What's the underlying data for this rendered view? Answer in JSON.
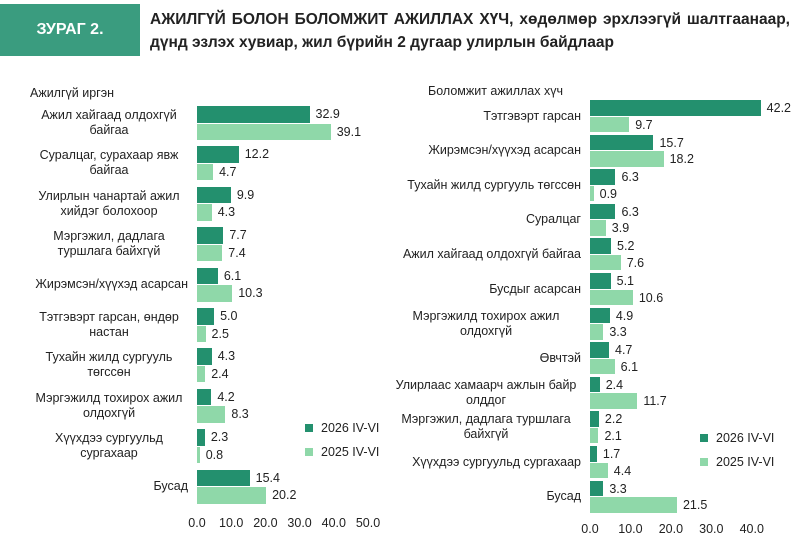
{
  "header": {
    "label": "ЗУРАГ 2.",
    "title": "АЖИЛГҮЙ БОЛОН БОЛОМЖИТ АЖИЛЛАХ ХҮЧ, хөдөлмөр эрхлээгүй шалтгаанаар, дүнд эзлэх хувиар, жил бүрийн 2 дугаар улирлын байдлаар"
  },
  "chart_data": [
    {
      "type": "hbar",
      "title": "Ажилгүй иргэн",
      "categories": [
        "Ажил хайгаад олдохгүй байгаа",
        "Суралцаг, сурахаар явж байгаа",
        "Улирлын чанартай ажил хийдэг болохоор",
        "Мэргэжил, дадлага туршлага байхгүй",
        "Жирэмсэн/хүүхэд асарсан",
        "Тэтгэвэрт гарсан, өндөр настан",
        "Тухайн жилд сургууль төгссөн",
        "Мэргэжилд тохирох ажил олдохгүй",
        "Хүүхдээ сургуульд сургахаар",
        "Бусад"
      ],
      "series": [
        {
          "name": "2026 IV-VI",
          "color": "#23906e",
          "values": [
            32.9,
            12.2,
            9.9,
            7.7,
            6.1,
            5.0,
            4.3,
            4.2,
            2.3,
            15.4
          ],
          "value_labels": [
            "32.9",
            "12.2",
            "9.9",
            "7.7",
            "6.1",
            "5.0",
            "4.3",
            "4.2",
            "2.3",
            "15.4"
          ]
        },
        {
          "name": "2025 IV-VI",
          "color": "#8fd8a9",
          "values": [
            39.1,
            4.7,
            4.3,
            7.4,
            10.3,
            2.5,
            2.4,
            8.3,
            0.8,
            20.2
          ],
          "value_labels": [
            "39.1",
            "4.7",
            "4.3",
            "7.4",
            "10.3",
            "2.5",
            "2.4",
            "8.3",
            "0.8",
            "20.2"
          ]
        }
      ],
      "xlim": [
        0,
        50
      ],
      "xticks": [
        {
          "value": 0,
          "label": "0.0"
        },
        {
          "value": 10,
          "label": "10.0"
        },
        {
          "value": 20,
          "label": "20.0"
        },
        {
          "value": 30,
          "label": "30.0"
        },
        {
          "value": 40,
          "label": "40.0"
        },
        {
          "value": 50,
          "label": "50.0"
        }
      ]
    },
    {
      "type": "hbar",
      "title": "Боломжит ажиллах хүч",
      "categories": [
        "Тэтгэвэрт гарсан",
        "Жирэмсэн/хүүхэд асарсан",
        "Тухайн жилд сургууль төгссөн",
        "Суралцаг",
        "Ажил хайгаад олдохгүй байгаа",
        "Бусдыг асарсан",
        "Мэргэжилд тохирох ажил олдохгүй",
        "Өвчтэй",
        "Улирлаас хамаарч ажлын байр олддог",
        "Мэргэжил, дадлага туршлага байхгүй",
        "Хүүхдээ сургуульд сургахаар",
        "Бусад"
      ],
      "series": [
        {
          "name": "2026 IV-VI",
          "color": "#23906e",
          "values": [
            42.2,
            15.7,
            6.3,
            6.3,
            5.2,
            5.1,
            4.9,
            4.7,
            2.4,
            2.2,
            1.7,
            3.3
          ],
          "value_labels": [
            "42.2",
            "15.7",
            "6.3",
            "6.3",
            "5.2",
            "5.1",
            "4.9",
            "4.7",
            "2.4",
            "2.2",
            "1.7",
            "3.3"
          ]
        },
        {
          "name": "2025 IV-VI",
          "color": "#8fd8a9",
          "values": [
            9.7,
            18.2,
            0.9,
            3.9,
            7.6,
            10.6,
            3.3,
            6.1,
            11.7,
            2.1,
            4.4,
            21.5
          ],
          "value_labels": [
            "9.7",
            "18.2",
            "0.9",
            "3.9",
            "7.6",
            "10.6",
            "3.3",
            "6.1",
            "11.7",
            "2.1",
            "4.4",
            "21.5"
          ]
        }
      ],
      "xlim": [
        0,
        45
      ],
      "xticks": [
        {
          "value": 0,
          "label": "0.0"
        },
        {
          "value": 10,
          "label": "10.0"
        },
        {
          "value": 20,
          "label": "20.0"
        },
        {
          "value": 30,
          "label": "30.0"
        },
        {
          "value": 40,
          "label": "40.0"
        }
      ]
    }
  ]
}
